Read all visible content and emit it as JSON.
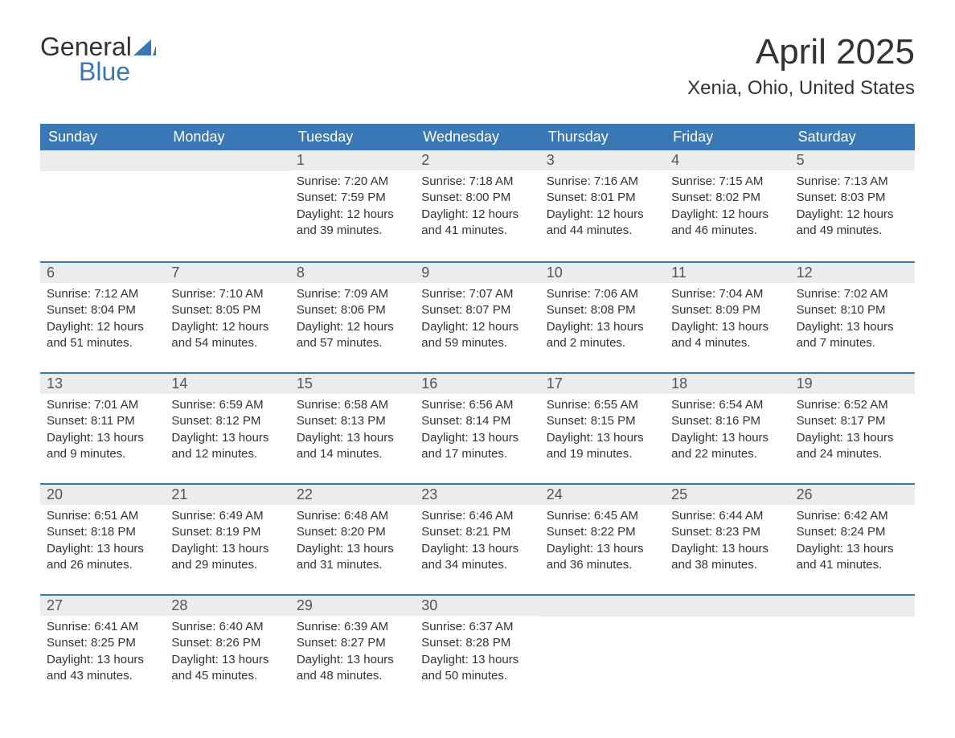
{
  "logo": {
    "top": "General",
    "bottom": "Blue",
    "icon_color": "#3a78b5"
  },
  "title": "April 2025",
  "location": "Xenia, Ohio, United States",
  "colors": {
    "header_bg": "#3a78b5",
    "header_text": "#ffffff",
    "daynum_bg": "#ececec",
    "text": "#333333",
    "page_bg": "#ffffff",
    "week_border": "#3a78b5"
  },
  "typography": {
    "title_fontsize": 44,
    "location_fontsize": 24,
    "dayhead_fontsize": 18,
    "daynum_fontsize": 18,
    "body_fontsize": 15
  },
  "layout": {
    "columns": 7,
    "rows": 5,
    "leading_blank_days": 2
  },
  "day_headers": [
    "Sunday",
    "Monday",
    "Tuesday",
    "Wednesday",
    "Thursday",
    "Friday",
    "Saturday"
  ],
  "labels": {
    "sunrise": "Sunrise:",
    "sunset": "Sunset:",
    "daylight": "Daylight:"
  },
  "days": [
    {
      "n": 1,
      "sunrise": "7:20 AM",
      "sunset": "7:59 PM",
      "daylight": "12 hours and 39 minutes."
    },
    {
      "n": 2,
      "sunrise": "7:18 AM",
      "sunset": "8:00 PM",
      "daylight": "12 hours and 41 minutes."
    },
    {
      "n": 3,
      "sunrise": "7:16 AM",
      "sunset": "8:01 PM",
      "daylight": "12 hours and 44 minutes."
    },
    {
      "n": 4,
      "sunrise": "7:15 AM",
      "sunset": "8:02 PM",
      "daylight": "12 hours and 46 minutes."
    },
    {
      "n": 5,
      "sunrise": "7:13 AM",
      "sunset": "8:03 PM",
      "daylight": "12 hours and 49 minutes."
    },
    {
      "n": 6,
      "sunrise": "7:12 AM",
      "sunset": "8:04 PM",
      "daylight": "12 hours and 51 minutes."
    },
    {
      "n": 7,
      "sunrise": "7:10 AM",
      "sunset": "8:05 PM",
      "daylight": "12 hours and 54 minutes."
    },
    {
      "n": 8,
      "sunrise": "7:09 AM",
      "sunset": "8:06 PM",
      "daylight": "12 hours and 57 minutes."
    },
    {
      "n": 9,
      "sunrise": "7:07 AM",
      "sunset": "8:07 PM",
      "daylight": "12 hours and 59 minutes."
    },
    {
      "n": 10,
      "sunrise": "7:06 AM",
      "sunset": "8:08 PM",
      "daylight": "13 hours and 2 minutes."
    },
    {
      "n": 11,
      "sunrise": "7:04 AM",
      "sunset": "8:09 PM",
      "daylight": "13 hours and 4 minutes."
    },
    {
      "n": 12,
      "sunrise": "7:02 AM",
      "sunset": "8:10 PM",
      "daylight": "13 hours and 7 minutes."
    },
    {
      "n": 13,
      "sunrise": "7:01 AM",
      "sunset": "8:11 PM",
      "daylight": "13 hours and 9 minutes."
    },
    {
      "n": 14,
      "sunrise": "6:59 AM",
      "sunset": "8:12 PM",
      "daylight": "13 hours and 12 minutes."
    },
    {
      "n": 15,
      "sunrise": "6:58 AM",
      "sunset": "8:13 PM",
      "daylight": "13 hours and 14 minutes."
    },
    {
      "n": 16,
      "sunrise": "6:56 AM",
      "sunset": "8:14 PM",
      "daylight": "13 hours and 17 minutes."
    },
    {
      "n": 17,
      "sunrise": "6:55 AM",
      "sunset": "8:15 PM",
      "daylight": "13 hours and 19 minutes."
    },
    {
      "n": 18,
      "sunrise": "6:54 AM",
      "sunset": "8:16 PM",
      "daylight": "13 hours and 22 minutes."
    },
    {
      "n": 19,
      "sunrise": "6:52 AM",
      "sunset": "8:17 PM",
      "daylight": "13 hours and 24 minutes."
    },
    {
      "n": 20,
      "sunrise": "6:51 AM",
      "sunset": "8:18 PM",
      "daylight": "13 hours and 26 minutes."
    },
    {
      "n": 21,
      "sunrise": "6:49 AM",
      "sunset": "8:19 PM",
      "daylight": "13 hours and 29 minutes."
    },
    {
      "n": 22,
      "sunrise": "6:48 AM",
      "sunset": "8:20 PM",
      "daylight": "13 hours and 31 minutes."
    },
    {
      "n": 23,
      "sunrise": "6:46 AM",
      "sunset": "8:21 PM",
      "daylight": "13 hours and 34 minutes."
    },
    {
      "n": 24,
      "sunrise": "6:45 AM",
      "sunset": "8:22 PM",
      "daylight": "13 hours and 36 minutes."
    },
    {
      "n": 25,
      "sunrise": "6:44 AM",
      "sunset": "8:23 PM",
      "daylight": "13 hours and 38 minutes."
    },
    {
      "n": 26,
      "sunrise": "6:42 AM",
      "sunset": "8:24 PM",
      "daylight": "13 hours and 41 minutes."
    },
    {
      "n": 27,
      "sunrise": "6:41 AM",
      "sunset": "8:25 PM",
      "daylight": "13 hours and 43 minutes."
    },
    {
      "n": 28,
      "sunrise": "6:40 AM",
      "sunset": "8:26 PM",
      "daylight": "13 hours and 45 minutes."
    },
    {
      "n": 29,
      "sunrise": "6:39 AM",
      "sunset": "8:27 PM",
      "daylight": "13 hours and 48 minutes."
    },
    {
      "n": 30,
      "sunrise": "6:37 AM",
      "sunset": "8:28 PM",
      "daylight": "13 hours and 50 minutes."
    }
  ]
}
